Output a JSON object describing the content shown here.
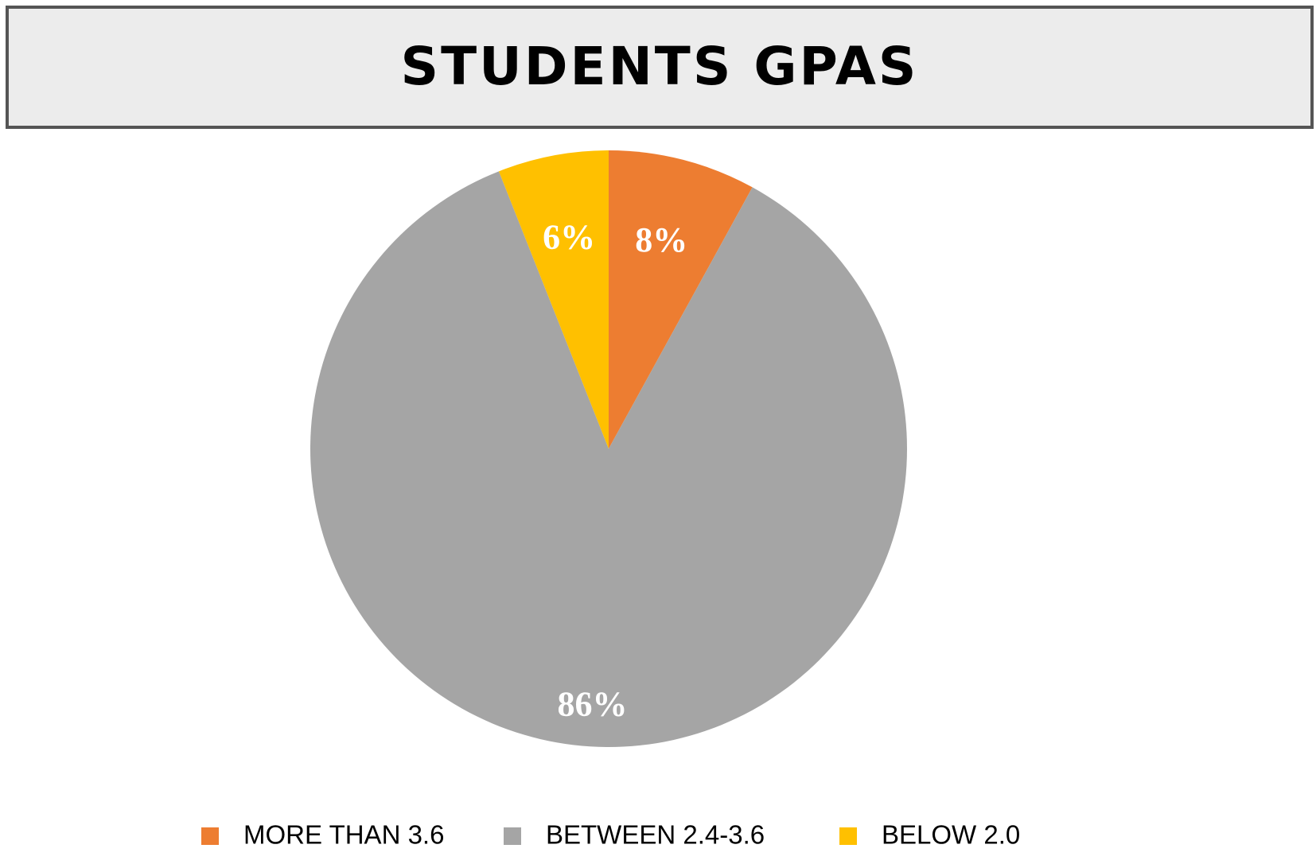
{
  "chart_data": {
    "type": "pie",
    "title": "STUDENTS GPAS",
    "categories": [
      "MORE THAN 3.6",
      "BETWEEN 2.4-3.6",
      "BELOW 2.0"
    ],
    "values": [
      8,
      86,
      6
    ],
    "value_labels": [
      "8%",
      "86%",
      "6%"
    ],
    "colors": [
      "#ED7D31",
      "#A5A5A5",
      "#FFC000"
    ],
    "legend": "bottom"
  }
}
